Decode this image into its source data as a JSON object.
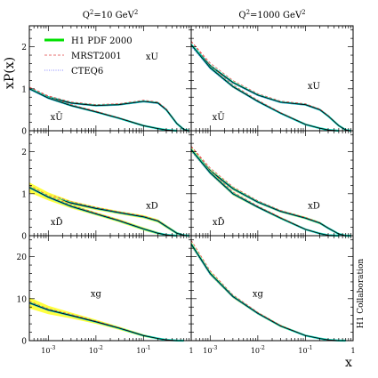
{
  "chart_data": {
    "type": "line",
    "ylabel": "xP(x)",
    "xlabel": "x",
    "side_label": "H1 Collaboration",
    "columns": [
      {
        "q2_base": "Q",
        "q2_sup": "2",
        "q2_eq": "=10 GeV",
        "q2_unit_sup": "2"
      },
      {
        "q2_base": "Q",
        "q2_sup": "2",
        "q2_eq": "=1000 GeV",
        "q2_unit_sup": "2"
      }
    ],
    "x_scale": "log",
    "xlim": [
      0.0004,
      1
    ],
    "x_ticks": [
      {
        "value": 0.001,
        "base": "10",
        "exp": "-3"
      },
      {
        "value": 0.01,
        "base": "10",
        "exp": "-2"
      },
      {
        "value": 0.1,
        "base": "10",
        "exp": "-1"
      },
      {
        "value": 1,
        "base": "1",
        "exp": ""
      }
    ],
    "legend": {
      "placement": "top-left",
      "entries": [
        {
          "name": "H1 PDF 2000",
          "color": "#00e000",
          "style": "band"
        },
        {
          "name": "MRST2001",
          "color": "#e04040",
          "style": "dashed"
        },
        {
          "name": "CTEQ6",
          "color": "#6060ff",
          "style": "dotted"
        }
      ]
    },
    "colors": {
      "band_fill": "#ffff40",
      "band_center": "#00e0c0",
      "central": "#000000",
      "mrst": "#e04040",
      "cteq": "#6060ff"
    },
    "rows": [
      {
        "ylim": [
          0,
          2.5
        ],
        "yticks": [
          0,
          1,
          2
        ],
        "panels": [
          {
            "curves": [
              {
                "label": "xU",
                "label_at": [
                  0.15,
                  1.7
                ],
                "x": [
                  0.0004,
                  0.001,
                  0.003,
                  0.01,
                  0.03,
                  0.1,
                  0.2,
                  0.3,
                  0.5,
                  0.7,
                  0.9
                ],
                "y": [
                  1.0,
                  0.8,
                  0.66,
                  0.6,
                  0.62,
                  0.7,
                  0.66,
                  0.5,
                  0.17,
                  0.03,
                  0.0
                ],
                "band": [
                  0.02,
                  0.02,
                  0.02,
                  0.02,
                  0.02,
                  0.02,
                  0.02,
                  0.02,
                  0.02,
                  0.01,
                  0.0
                ]
              },
              {
                "label": "xŪ",
                "label_at": [
                  0.0015,
                  0.25
                ],
                "x": [
                  0.0004,
                  0.001,
                  0.003,
                  0.01,
                  0.03,
                  0.1,
                  0.2,
                  0.3,
                  0.5
                ],
                "y": [
                  1.0,
                  0.78,
                  0.6,
                  0.45,
                  0.3,
                  0.12,
                  0.05,
                  0.02,
                  0.0
                ],
                "band": [
                  0.02,
                  0.02,
                  0.02,
                  0.02,
                  0.02,
                  0.02,
                  0.01,
                  0.01,
                  0.0
                ]
              }
            ]
          },
          {
            "curves": [
              {
                "label": "xU",
                "label_at": [
                  0.15,
                  1.0
                ],
                "x": [
                  0.0004,
                  0.001,
                  0.003,
                  0.01,
                  0.03,
                  0.1,
                  0.2,
                  0.3,
                  0.5,
                  0.7,
                  0.9
                ],
                "y": [
                  2.05,
                  1.55,
                  1.15,
                  0.85,
                  0.68,
                  0.62,
                  0.5,
                  0.35,
                  0.12,
                  0.02,
                  0.0
                ],
                "band": [
                  0.03,
                  0.03,
                  0.03,
                  0.02,
                  0.02,
                  0.02,
                  0.02,
                  0.02,
                  0.01,
                  0.0,
                  0.0
                ]
              },
              {
                "label": "xŪ",
                "label_at": [
                  0.0015,
                  0.25
                ],
                "x": [
                  0.0004,
                  0.001,
                  0.003,
                  0.01,
                  0.03,
                  0.1,
                  0.2,
                  0.3,
                  0.5
                ],
                "y": [
                  2.05,
                  1.5,
                  1.05,
                  0.7,
                  0.42,
                  0.15,
                  0.06,
                  0.02,
                  0.0
                ],
                "band": [
                  0.03,
                  0.03,
                  0.03,
                  0.02,
                  0.02,
                  0.01,
                  0.01,
                  0.0,
                  0.0
                ]
              }
            ]
          }
        ]
      },
      {
        "ylim": [
          0,
          2.5
        ],
        "yticks": [
          0,
          1,
          2
        ],
        "panels": [
          {
            "curves": [
              {
                "label": "xD",
                "label_at": [
                  0.15,
                  0.65
                ],
                "x": [
                  0.0004,
                  0.001,
                  0.003,
                  0.01,
                  0.03,
                  0.1,
                  0.2,
                  0.3,
                  0.5,
                  0.7,
                  0.9
                ],
                "y": [
                  1.15,
                  0.95,
                  0.78,
                  0.65,
                  0.55,
                  0.45,
                  0.35,
                  0.22,
                  0.06,
                  0.01,
                  0.0
                ],
                "band": [
                  0.12,
                  0.08,
                  0.05,
                  0.04,
                  0.04,
                  0.04,
                  0.04,
                  0.04,
                  0.03,
                  0.01,
                  0.0
                ]
              },
              {
                "label": "xD̄",
                "label_at": [
                  0.0015,
                  0.25
                ],
                "x": [
                  0.0004,
                  0.001,
                  0.003,
                  0.01,
                  0.03,
                  0.1,
                  0.2,
                  0.3,
                  0.5
                ],
                "y": [
                  1.15,
                  0.92,
                  0.7,
                  0.52,
                  0.36,
                  0.16,
                  0.06,
                  0.02,
                  0.0
                ],
                "band": [
                  0.12,
                  0.08,
                  0.05,
                  0.04,
                  0.04,
                  0.04,
                  0.03,
                  0.01,
                  0.0
                ]
              }
            ]
          },
          {
            "curves": [
              {
                "label": "xD",
                "label_at": [
                  0.15,
                  0.65
                ],
                "x": [
                  0.0004,
                  0.001,
                  0.003,
                  0.01,
                  0.03,
                  0.1,
                  0.2,
                  0.3,
                  0.5,
                  0.7,
                  0.9
                ],
                "y": [
                  2.05,
                  1.55,
                  1.12,
                  0.8,
                  0.58,
                  0.42,
                  0.3,
                  0.18,
                  0.04,
                  0.0,
                  0.0
                ],
                "band": [
                  0.05,
                  0.04,
                  0.04,
                  0.03,
                  0.03,
                  0.03,
                  0.03,
                  0.02,
                  0.02,
                  0.0,
                  0.0
                ]
              },
              {
                "label": "xD̄",
                "label_at": [
                  0.0015,
                  0.25
                ],
                "x": [
                  0.0004,
                  0.001,
                  0.003,
                  0.01,
                  0.03,
                  0.1,
                  0.2,
                  0.3,
                  0.5
                ],
                "y": [
                  2.05,
                  1.5,
                  1.0,
                  0.68,
                  0.42,
                  0.15,
                  0.05,
                  0.01,
                  0.0
                ],
                "band": [
                  0.05,
                  0.04,
                  0.04,
                  0.03,
                  0.03,
                  0.02,
                  0.01,
                  0.0,
                  0.0
                ]
              }
            ]
          }
        ]
      },
      {
        "ylim": [
          0,
          25
        ],
        "yticks": [
          0,
          10,
          20
        ],
        "panels": [
          {
            "curves": [
              {
                "label": "xg",
                "label_at": [
                  0.01,
                  10.5
                ],
                "x": [
                  0.0004,
                  0.001,
                  0.003,
                  0.01,
                  0.03,
                  0.1,
                  0.2,
                  0.3,
                  0.5,
                  0.7
                ],
                "y": [
                  9.0,
                  7.3,
                  6.0,
                  4.5,
                  3.0,
                  1.2,
                  0.5,
                  0.2,
                  0.03,
                  0.0
                ],
                "band": [
                  1.3,
                  1.0,
                  0.7,
                  0.5,
                  0.4,
                  0.3,
                  0.2,
                  0.1,
                  0.0,
                  0.0
                ]
              }
            ]
          },
          {
            "curves": [
              {
                "label": "xg",
                "label_at": [
                  0.01,
                  10.5
                ],
                "x": [
                  0.0004,
                  0.001,
                  0.003,
                  0.01,
                  0.03,
                  0.1,
                  0.2,
                  0.3,
                  0.5,
                  0.7
                ],
                "y": [
                  23.0,
                  16.0,
                  10.5,
                  6.5,
                  3.5,
                  1.2,
                  0.5,
                  0.2,
                  0.03,
                  0.0
                ],
                "band": [
                  0.6,
                  0.5,
                  0.4,
                  0.3,
                  0.3,
                  0.2,
                  0.1,
                  0.05,
                  0.0,
                  0.0
                ]
              }
            ]
          }
        ]
      }
    ]
  }
}
